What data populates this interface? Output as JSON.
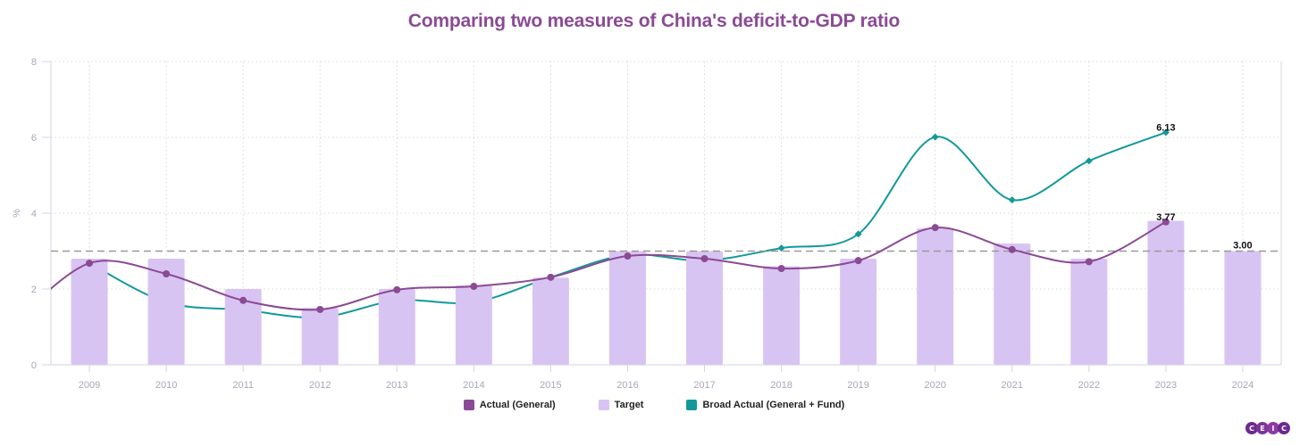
{
  "chart_data": {
    "type": "bar",
    "title": "Comparing two measures of China's deficit-to-GDP ratio",
    "xlabel": "",
    "ylabel": "%",
    "ylim": [
      0,
      8
    ],
    "yticks": [
      0,
      2,
      4,
      6,
      8
    ],
    "grid": true,
    "legend_position": "bottom-center",
    "categories": [
      "2009",
      "2010",
      "2011",
      "2012",
      "2013",
      "2014",
      "2015",
      "2016",
      "2017",
      "2018",
      "2019",
      "2020",
      "2021",
      "2022",
      "2023",
      "2024"
    ],
    "series": [
      {
        "name": "Actual (General)",
        "type": "line",
        "color": "#8b4a94",
        "marker": "circle",
        "lead_in_value": 1.1,
        "values": [
          2.68,
          2.4,
          1.7,
          1.46,
          1.98,
          2.07,
          2.31,
          2.87,
          2.8,
          2.54,
          2.75,
          3.62,
          3.04,
          2.72,
          3.77,
          null
        ],
        "labels": {
          "2023": "3.77"
        }
      },
      {
        "name": "Target",
        "type": "bar",
        "color": "#d8c4f2",
        "values": [
          2.8,
          2.8,
          2.0,
          1.5,
          2.0,
          2.1,
          2.3,
          3.0,
          3.0,
          2.6,
          2.8,
          3.6,
          3.2,
          2.8,
          3.8,
          3.0
        ],
        "labels": {
          "2024": "3.00"
        }
      },
      {
        "name": "Broad Actual (General + Fund)",
        "type": "line",
        "color": "#13999a",
        "marker": "diamond",
        "marker_from": "2018",
        "values": [
          2.68,
          1.65,
          1.45,
          1.25,
          1.7,
          1.65,
          2.31,
          2.9,
          2.75,
          3.08,
          3.45,
          6.01,
          4.35,
          5.38,
          6.13,
          null
        ],
        "labels": {
          "2023": "6.13"
        }
      }
    ],
    "reference_line": {
      "value": 3.0,
      "style": "dashed",
      "color": "#999999"
    }
  },
  "legend": [
    {
      "label": "Actual (General)",
      "color": "#8b4a94"
    },
    {
      "label": "Target",
      "color": "#d8c4f2"
    },
    {
      "label": "Broad Actual (General + Fund)",
      "color": "#13999a"
    }
  ],
  "brand": {
    "logo_letters": [
      "C",
      "E",
      "I",
      "C"
    ],
    "logo_colors": [
      "#6a2b8f",
      "#7d3398",
      "#8b3aa3",
      "#6a2b8f"
    ]
  },
  "colors": {
    "title": "#8b4a94",
    "axis": "#d6d3e0",
    "tick_text": "#a9a6b8",
    "grid": "#dcdcdc"
  }
}
